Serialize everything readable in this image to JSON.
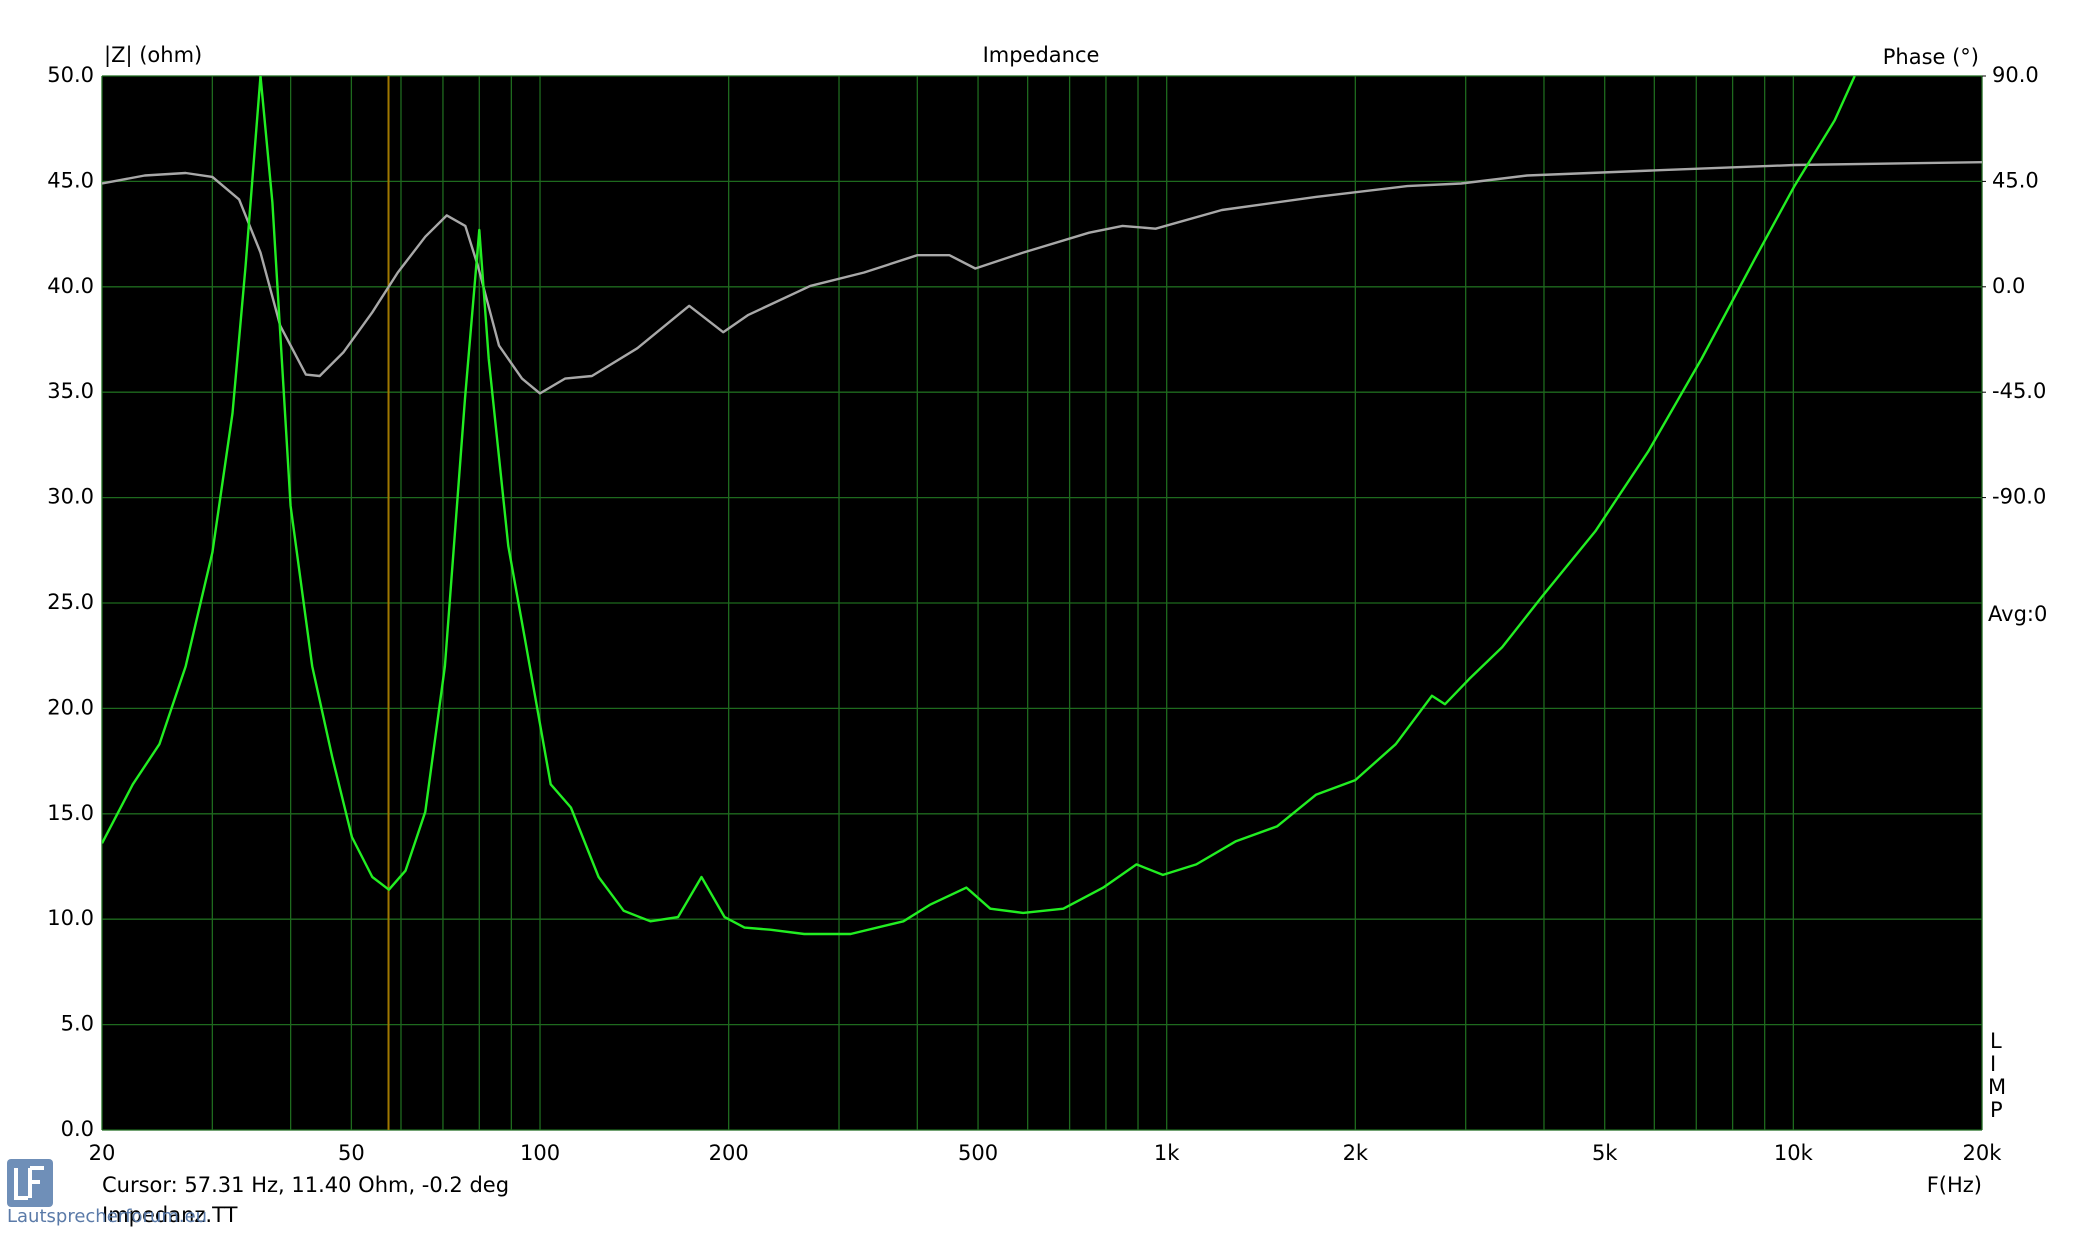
{
  "chart_data": {
    "type": "line",
    "title": "Impedance",
    "ylabel": "|Z| (ohm)",
    "y2label": "Phase (°)",
    "xlabel": "F(Hz)",
    "annotations": {
      "avg": "Avg:0",
      "limp": [
        "L",
        "I",
        "M",
        "P"
      ],
      "cursor": "Cursor: 57.31 Hz, 11.40 Ohm, -0.2 deg",
      "file": "Impedanz.TT",
      "watermark": "Lautsprecherforum.eu"
    },
    "cursor_x": 57.31,
    "cursor_color": "#a07800",
    "log_x": true,
    "grid": true,
    "grid_color": "#1e6a1e",
    "xlim": [
      20,
      20000
    ],
    "xticks": [
      20,
      50,
      100,
      200,
      500,
      {
        "value": 1000,
        "label": "1k"
      },
      {
        "value": 2000,
        "label": "2k"
      },
      {
        "value": 5000,
        "label": "5k"
      },
      {
        "value": 10000,
        "label": "10k"
      },
      {
        "value": 20000,
        "label": "20k"
      }
    ],
    "xgrid_minor": [
      30,
      40,
      60,
      70,
      80,
      90,
      300,
      400,
      600,
      700,
      800,
      900,
      3000,
      4000,
      6000,
      7000,
      8000,
      9000
    ],
    "ylim": [
      0,
      50
    ],
    "yticks": [
      {
        "value": 0,
        "label": "0.0"
      },
      {
        "value": 5,
        "label": "5.0"
      },
      {
        "value": 10,
        "label": "10.0"
      },
      {
        "value": 15,
        "label": "15.0"
      },
      {
        "value": 20,
        "label": "20.0"
      },
      {
        "value": 25,
        "label": "25.0"
      },
      {
        "value": 30,
        "label": "30.0"
      },
      {
        "value": 35,
        "label": "35.0"
      },
      {
        "value": 40,
        "label": "40.0"
      },
      {
        "value": 45,
        "label": "45.0"
      },
      {
        "value": 50,
        "label": "50.0"
      }
    ],
    "y2lim": [
      -360,
      90
    ],
    "y2ticks": [
      {
        "value": 90,
        "label": "90.0"
      },
      {
        "value": 45,
        "label": "45.0"
      },
      {
        "value": 0,
        "label": "0.0"
      },
      {
        "value": -45,
        "label": "-45.0"
      },
      {
        "value": -90,
        "label": "-90.0"
      }
    ],
    "series": [
      {
        "color": "#22ee22",
        "x": [
          20,
          22.4,
          24.7,
          27.2,
          30,
          32.3,
          33.9,
          35.8,
          37.4,
          40,
          43.3,
          46.6,
          50.1,
          54,
          57.4,
          61,
          65.6,
          70.5,
          75.9,
          80,
          82.8,
          89,
          94.6,
          104,
          112,
          124,
          136,
          150,
          166,
          181,
          197,
          212,
          233,
          264,
          313,
          380,
          420,
          479,
          523,
          590,
          684,
          792,
          895,
          986,
          1115,
          1290,
          1500,
          1730,
          2000,
          2320,
          2650,
          2780,
          3040,
          3430,
          3970,
          4830,
          5870,
          7140,
          8670,
          10050,
          11640,
          12530
        ],
        "values": [
          13.6,
          16.4,
          18.3,
          22,
          27.4,
          34,
          41,
          50,
          44,
          29.6,
          22,
          17.7,
          13.9,
          12,
          11.4,
          12.3,
          15.1,
          22,
          34.7,
          42.7,
          36.6,
          27.7,
          23.3,
          16.4,
          15.3,
          12,
          10.4,
          9.9,
          10.1,
          12,
          10.1,
          9.6,
          9.5,
          9.3,
          9.3,
          9.9,
          10.7,
          11.5,
          10.5,
          10.3,
          10.5,
          11.5,
          12.6,
          12.1,
          12.6,
          13.7,
          14.4,
          15.9,
          16.6,
          18.3,
          20.6,
          20.2,
          21.4,
          22.9,
          25.3,
          28.4,
          32.2,
          36.6,
          41.3,
          44.8,
          47.9,
          50
        ]
      },
      {
        "color": "#a8a8a8",
        "axis": "y2",
        "x": [
          20,
          23.4,
          27.2,
          30,
          33.1,
          35.8,
          38.5,
          42.3,
          44.5,
          48.6,
          54,
          59.3,
          65.6,
          71,
          76,
          79.6,
          86,
          93.6,
          100,
          109.6,
          121,
          143,
          173,
          196,
          215,
          270,
          329,
          400,
          450,
          495,
          590,
          752,
          850,
          960,
          1225,
          1730,
          2420,
          2950,
          3760,
          6110,
          10050,
          20000
        ],
        "values": [
          44.1,
          47.5,
          48.6,
          46.9,
          37.3,
          14.6,
          -16.6,
          -37.5,
          -38.1,
          -27.9,
          -10.9,
          6.1,
          21.4,
          30.5,
          26,
          8.9,
          -25.1,
          -39.2,
          -45.5,
          -39.2,
          -38.1,
          -26.2,
          -8.1,
          -19.4,
          -12,
          0.4,
          6.1,
          13.5,
          13.5,
          7.8,
          14.6,
          23.1,
          26,
          24.8,
          32.8,
          38.4,
          43,
          44.1,
          47.5,
          49.8,
          52,
          53.2
        ]
      }
    ]
  }
}
